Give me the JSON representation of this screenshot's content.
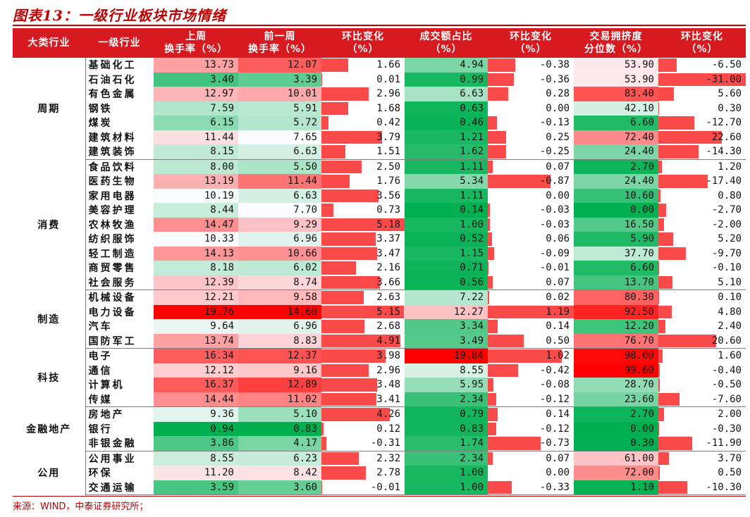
{
  "title": "图表13：一级行业板块市场情绪",
  "source": "来源：WIND，中泰证券研究所；",
  "headers": {
    "category": "大类行业",
    "industry": "一级行业",
    "turnover_last_week": [
      "上周",
      "换手率（%）"
    ],
    "turnover_prev_week": [
      "前一周",
      "换手率（%）"
    ],
    "turnover_change": [
      "环比变化",
      "（%）"
    ],
    "volume_share": [
      "成交额占比",
      "（%）"
    ],
    "volume_share_change": [
      "环比变化",
      "（%）"
    ],
    "crowding": [
      "交易拥挤度",
      "分位数（%）"
    ],
    "crowding_change": [
      "环比变化",
      "（%）"
    ]
  },
  "colors": {
    "header_bg": "#d71920",
    "bar": "#fa4a4a",
    "title": "#c00000",
    "green_strong": "#00b050",
    "red_strong": "#ff0000"
  },
  "groups": [
    {
      "name": "周期",
      "rows": [
        {
          "industry": "基础化工",
          "t1": "13.73",
          "t2": "12.07",
          "dt": "1.66",
          "vs": "4.94",
          "dvs": "-0.38",
          "cr": "53.90",
          "dcr": "-6.50"
        },
        {
          "industry": "石油石化",
          "t1": "3.40",
          "t2": "3.39",
          "dt": "0.01",
          "vs": "0.99",
          "dvs": "-0.36",
          "cr": "53.90",
          "dcr": "-31.00"
        },
        {
          "industry": "有色金属",
          "t1": "12.97",
          "t2": "10.01",
          "dt": "2.96",
          "vs": "6.63",
          "dvs": "0.28",
          "cr": "83.40",
          "dcr": "5.60"
        },
        {
          "industry": "钢铁",
          "t1": "7.59",
          "t2": "5.91",
          "dt": "1.68",
          "vs": "0.63",
          "dvs": "0.00",
          "cr": "42.10",
          "dcr": "0.30"
        },
        {
          "industry": "煤炭",
          "t1": "6.15",
          "t2": "5.72",
          "dt": "0.42",
          "vs": "0.46",
          "dvs": "-0.13",
          "cr": "6.60",
          "dcr": "-12.70"
        },
        {
          "industry": "建筑材料",
          "t1": "11.44",
          "t2": "7.65",
          "dt": "3.79",
          "vs": "1.21",
          "dvs": "0.25",
          "cr": "72.40",
          "dcr": "22.60"
        },
        {
          "industry": "建筑装饰",
          "t1": "8.15",
          "t2": "6.63",
          "dt": "1.51",
          "vs": "1.62",
          "dvs": "-0.25",
          "cr": "24.40",
          "dcr": "-14.30"
        }
      ]
    },
    {
      "name": "消费",
      "rows": [
        {
          "industry": "食品饮料",
          "t1": "8.00",
          "t2": "5.50",
          "dt": "2.50",
          "vs": "1.11",
          "dvs": "0.07",
          "cr": "2.70",
          "dcr": "1.20"
        },
        {
          "industry": "医药生物",
          "t1": "13.19",
          "t2": "11.44",
          "dt": "1.76",
          "vs": "5.34",
          "dvs": "-0.87",
          "cr": "24.40",
          "dcr": "-17.40"
        },
        {
          "industry": "家用电器",
          "t1": "10.19",
          "t2": "6.63",
          "dt": "3.56",
          "vs": "1.11",
          "dvs": "0.00",
          "cr": "10.60",
          "dcr": "0.80"
        },
        {
          "industry": "美容护理",
          "t1": "8.44",
          "t2": "7.70",
          "dt": "0.73",
          "vs": "0.14",
          "dvs": "-0.03",
          "cr": "0.00",
          "dcr": "-2.70"
        },
        {
          "industry": "农林牧渔",
          "t1": "14.47",
          "t2": "9.29",
          "dt": "5.18",
          "vs": "1.00",
          "dvs": "-0.03",
          "cr": "16.50",
          "dcr": "-2.00"
        },
        {
          "industry": "纺织服饰",
          "t1": "10.33",
          "t2": "6.96",
          "dt": "3.37",
          "vs": "0.52",
          "dvs": "0.06",
          "cr": "5.90",
          "dcr": "5.20"
        },
        {
          "industry": "轻工制造",
          "t1": "14.13",
          "t2": "10.66",
          "dt": "3.47",
          "vs": "1.15",
          "dvs": "-0.09",
          "cr": "37.70",
          "dcr": "-9.70"
        },
        {
          "industry": "商贸零售",
          "t1": "8.18",
          "t2": "6.02",
          "dt": "2.16",
          "vs": "0.71",
          "dvs": "-0.01",
          "cr": "6.60",
          "dcr": "-0.10"
        },
        {
          "industry": "社会服务",
          "t1": "12.39",
          "t2": "8.74",
          "dt": "3.66",
          "vs": "0.56",
          "dvs": "0.07",
          "cr": "13.70",
          "dcr": "5.10"
        }
      ]
    },
    {
      "name": "制造",
      "rows": [
        {
          "industry": "机械设备",
          "t1": "12.21",
          "t2": "9.58",
          "dt": "2.63",
          "vs": "7.22",
          "dvs": "0.02",
          "cr": "80.30",
          "dcr": "0.10"
        },
        {
          "industry": "电力设备",
          "t1": "19.76",
          "t2": "14.60",
          "dt": "5.15",
          "vs": "12.27",
          "dvs": "1.19",
          "cr": "92.50",
          "dcr": "4.80"
        },
        {
          "industry": "汽车",
          "t1": "9.64",
          "t2": "6.96",
          "dt": "2.68",
          "vs": "3.34",
          "dvs": "0.14",
          "cr": "12.20",
          "dcr": "2.40"
        },
        {
          "industry": "国防军工",
          "t1": "13.74",
          "t2": "8.83",
          "dt": "4.91",
          "vs": "3.49",
          "dvs": "0.50",
          "cr": "76.70",
          "dcr": "20.60"
        }
      ]
    },
    {
      "name": "科技",
      "rows": [
        {
          "industry": "电子",
          "t1": "16.34",
          "t2": "12.37",
          "dt": "3.98",
          "vs": "19.84",
          "dvs": "1.02",
          "cr": "98.00",
          "dcr": "1.60"
        },
        {
          "industry": "通信",
          "t1": "12.12",
          "t2": "9.16",
          "dt": "2.96",
          "vs": "8.55",
          "dvs": "-0.42",
          "cr": "99.60",
          "dcr": "-0.40"
        },
        {
          "industry": "计算机",
          "t1": "16.37",
          "t2": "12.89",
          "dt": "3.48",
          "vs": "5.95",
          "dvs": "-0.08",
          "cr": "28.70",
          "dcr": "-0.50"
        },
        {
          "industry": "传媒",
          "t1": "14.44",
          "t2": "11.02",
          "dt": "3.41",
          "vs": "2.34",
          "dvs": "-0.12",
          "cr": "23.60",
          "dcr": "-7.60"
        }
      ]
    },
    {
      "name": "金融地产",
      "rows": [
        {
          "industry": "房地产",
          "t1": "9.36",
          "t2": "5.10",
          "dt": "4.26",
          "vs": "0.79",
          "dvs": "0.14",
          "cr": "2.70",
          "dcr": "2.00"
        },
        {
          "industry": "银行",
          "t1": "0.94",
          "t2": "0.83",
          "dt": "0.12",
          "vs": "0.83",
          "dvs": "-0.12",
          "cr": "0.00",
          "dcr": "-0.30"
        },
        {
          "industry": "非银金融",
          "t1": "3.86",
          "t2": "4.17",
          "dt": "-0.31",
          "vs": "1.74",
          "dvs": "-0.73",
          "cr": "0.30",
          "dcr": "-11.90"
        }
      ]
    },
    {
      "name": "公用",
      "rows": [
        {
          "industry": "公用事业",
          "t1": "8.55",
          "t2": "6.23",
          "dt": "2.32",
          "vs": "2.34",
          "dvs": "0.07",
          "cr": "61.00",
          "dcr": "3.70"
        },
        {
          "industry": "环保",
          "t1": "11.20",
          "t2": "8.42",
          "dt": "2.78",
          "vs": "1.00",
          "dvs": "0.00",
          "cr": "72.00",
          "dcr": "0.50"
        },
        {
          "industry": "交通运输",
          "t1": "3.59",
          "t2": "3.60",
          "dt": "-0.01",
          "vs": "1.00",
          "dvs": "-0.33",
          "cr": "1.10",
          "dcr": "-10.30"
        }
      ]
    }
  ]
}
